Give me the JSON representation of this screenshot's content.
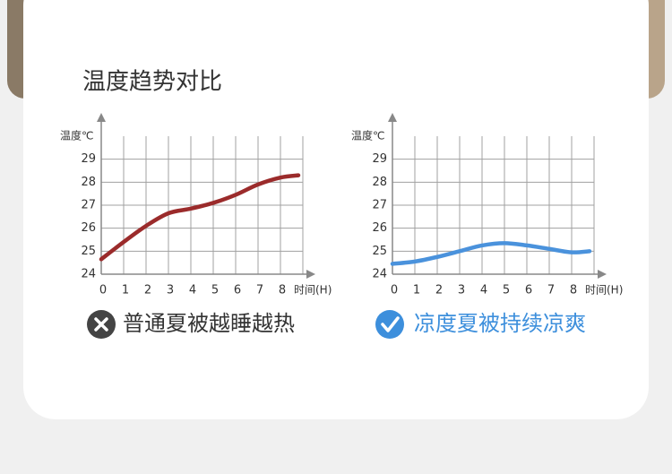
{
  "title": "温度趋势对比",
  "chart_data": [
    {
      "type": "line",
      "ylabel": "温度℃",
      "xlabel": "时间(H)",
      "caption": "普通夏被越睡越热",
      "caption_color": "#333333",
      "icon": "cross",
      "x": [
        0,
        1,
        2,
        3,
        4,
        5,
        6,
        7,
        8,
        8.8
      ],
      "series": [
        {
          "name": "普通夏被",
          "color": "#9b2b2b",
          "values": [
            24.65,
            25.4,
            26.1,
            26.65,
            26.85,
            27.1,
            27.45,
            27.9,
            28.2,
            28.3
          ]
        }
      ],
      "xlim": [
        0,
        9
      ],
      "xticks": [
        0,
        1,
        2,
        3,
        4,
        5,
        6,
        7,
        8
      ],
      "ylim": [
        24,
        30
      ],
      "yticks": [
        24,
        25,
        26,
        27,
        28,
        29
      ],
      "grid": true
    },
    {
      "type": "line",
      "ylabel": "温度℃",
      "xlabel": "时间(H)",
      "caption": "凉度夏被持续凉爽",
      "caption_color": "#3d8fdc",
      "icon": "check",
      "x": [
        0,
        1,
        2,
        3,
        4,
        5,
        6,
        7,
        8,
        8.8
      ],
      "series": [
        {
          "name": "凉度夏被",
          "color": "#4a92dc",
          "values": [
            24.45,
            24.55,
            24.75,
            25.0,
            25.25,
            25.35,
            25.25,
            25.1,
            24.95,
            25.0
          ]
        }
      ],
      "xlim": [
        0,
        9
      ],
      "xticks": [
        0,
        1,
        2,
        3,
        4,
        5,
        6,
        7,
        8
      ],
      "ylim": [
        24,
        30
      ],
      "yticks": [
        24,
        25,
        26,
        27,
        28,
        29
      ],
      "grid": true
    }
  ]
}
